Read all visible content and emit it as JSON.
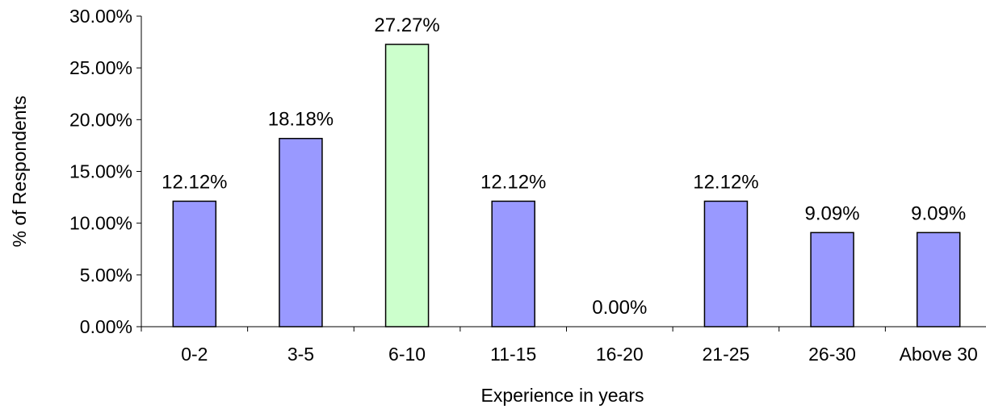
{
  "chart_data": {
    "type": "bar",
    "categories": [
      "0-2",
      "3-5",
      "6-10",
      "11-15",
      "16-20",
      "21-25",
      "26-30",
      "Above 30"
    ],
    "values": [
      12.12,
      18.18,
      27.27,
      12.12,
      0.0,
      12.12,
      9.09,
      9.09
    ],
    "data_labels": [
      "12.12%",
      "18.18%",
      "27.27%",
      "12.12%",
      "0.00%",
      "12.12%",
      "9.09%",
      "9.09%"
    ],
    "ylim": [
      0,
      30
    ],
    "yticks": [
      0,
      5,
      10,
      15,
      20,
      25,
      30
    ],
    "ytick_labels": [
      "0.00%",
      "5.00%",
      "10.00%",
      "15.00%",
      "20.00%",
      "25.00%",
      "30.00%"
    ],
    "xlabel": "Experience in years",
    "ylabel": "% of Respondents",
    "title": "",
    "grid": false,
    "legend": false,
    "colors": {
      "bar": "#9999ff",
      "highlight_bar": "#ccffcc",
      "highlight_index": 2,
      "outline": "#000000"
    }
  }
}
